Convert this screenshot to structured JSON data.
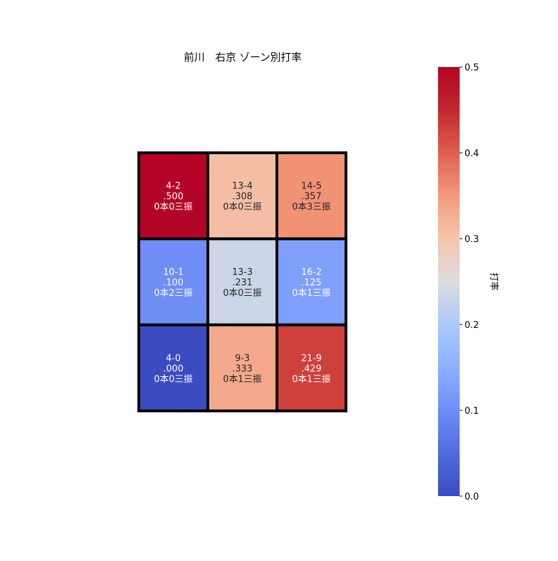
{
  "chart_data": {
    "type": "heatmap",
    "title": "前川　右京 ゾーン別打率",
    "rows": 3,
    "cols": 3,
    "cells": [
      [
        {
          "record": "4-2",
          "avg": ".500",
          "value": 0.5,
          "note": "0本0三振"
        },
        {
          "record": "13-4",
          "avg": ".308",
          "value": 0.308,
          "note": "0本0三振"
        },
        {
          "record": "14-5",
          "avg": ".357",
          "value": 0.357,
          "note": "0本3三振"
        }
      ],
      [
        {
          "record": "10-1",
          "avg": ".100",
          "value": 0.1,
          "note": "0本2三振"
        },
        {
          "record": "13-3",
          "avg": ".231",
          "value": 0.231,
          "note": "0本0三振"
        },
        {
          "record": "16-2",
          "avg": ".125",
          "value": 0.125,
          "note": "0本1三振"
        }
      ],
      [
        {
          "record": "4-0",
          "avg": ".000",
          "value": 0.0,
          "note": "0本0三振"
        },
        {
          "record": "9-3",
          "avg": ".333",
          "value": 0.333,
          "note": "0本1三振"
        },
        {
          "record": "21-9",
          "avg": ".429",
          "value": 0.429,
          "note": "0本1三振"
        }
      ]
    ],
    "colorbar": {
      "label": "打率",
      "range": [
        0.0,
        0.5
      ],
      "ticks": [
        "0.0",
        "0.1",
        "0.2",
        "0.3",
        "0.4",
        "0.5"
      ],
      "colormap": "coolwarm"
    }
  }
}
